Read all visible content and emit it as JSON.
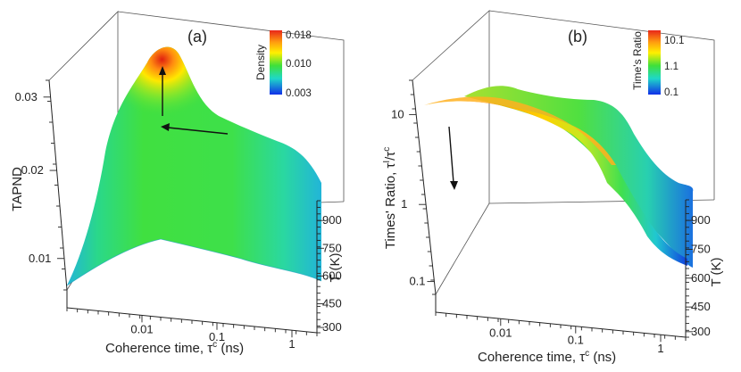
{
  "chart_data": [
    {
      "type": "surface",
      "panel_label": "(a)",
      "zlabel": "TAPND",
      "xlabel": "Coherence time, τ",
      "xlabel_sup": "c",
      "xlabel_unit": " (ns)",
      "ylabel": "T (K)",
      "zticks": [
        "0.01",
        "0.02",
        "0.03"
      ],
      "xticks": [
        "0.01",
        "0.1",
        "1"
      ],
      "yticks": [
        "300",
        "450",
        "600",
        "750",
        "900"
      ],
      "colorbar": {
        "title": "Density",
        "ticks": [
          "0.018",
          "0.010",
          "0.003"
        ]
      },
      "front_ridge": [
        0.011,
        0.014,
        0.018,
        0.021,
        0.024,
        0.026,
        0.027,
        0.027,
        0.026,
        0.025,
        0.024,
        0.022,
        0.02
      ],
      "back_ridge": [
        0.01,
        0.013,
        0.017,
        0.02,
        0.023,
        0.025,
        0.026,
        0.025,
        0.024,
        0.023,
        0.022,
        0.021,
        0.02
      ],
      "peak": {
        "tau_ns": 0.02,
        "T_K": 600,
        "value": 0.032
      }
    },
    {
      "type": "surface",
      "panel_label": "(b)",
      "zlabel": "Times' Ratio, τ",
      "zlabel_sup": "I",
      "zlabel_tail": "/τ",
      "zlabel_tail_sup": "c",
      "xlabel": "Coherence time, τ",
      "xlabel_sup": "c",
      "xlabel_unit": " (ns)",
      "ylabel": "T (K)",
      "zticks": [
        "0.1",
        "1",
        "10"
      ],
      "xticks": [
        "0.01",
        "0.1",
        "1"
      ],
      "yticks": [
        "300",
        "450",
        "600",
        "750",
        "900"
      ],
      "colorbar": {
        "title": "Time's Ratio",
        "ticks": [
          "10.1",
          "1.1",
          "0.1"
        ]
      },
      "ratio_profile": [
        11.0,
        10.5,
        9.5,
        8.0,
        6.0,
        3.5,
        2.0,
        1.2,
        0.8,
        0.5,
        0.3,
        0.2
      ]
    }
  ]
}
